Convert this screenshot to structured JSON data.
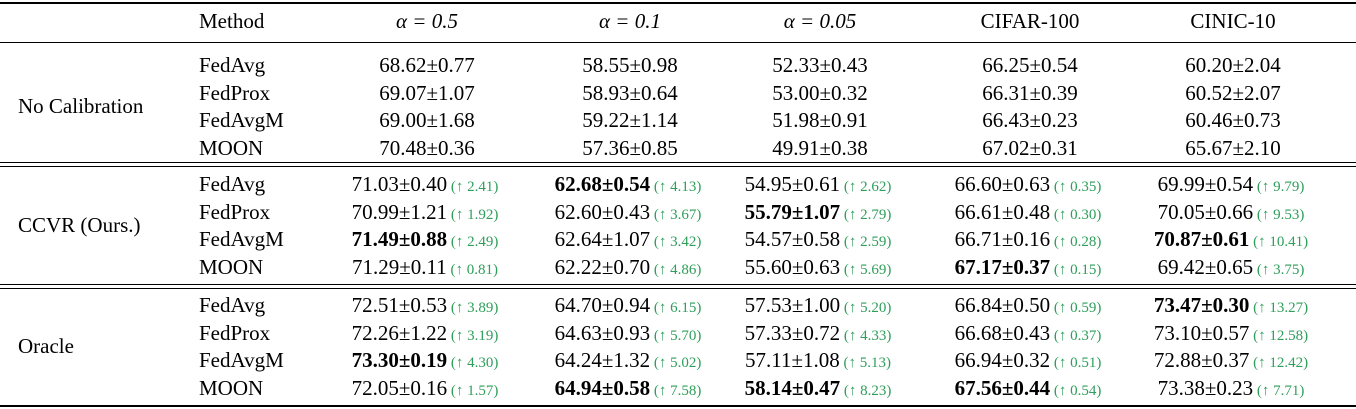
{
  "table": {
    "headers": [
      "Method",
      "α = 0.5",
      "α = 0.1",
      "α = 0.05",
      "CIFAR-100",
      "CINIC-10"
    ],
    "groups": [
      {
        "label": "No Calibration",
        "rows": [
          {
            "method": "FedAvg",
            "cells": [
              {
                "v": "68.62±0.77"
              },
              {
                "v": "58.55±0.98"
              },
              {
                "v": "52.33±0.43"
              },
              {
                "v": "66.25±0.54"
              },
              {
                "v": "60.20±2.04"
              }
            ]
          },
          {
            "method": "FedProx",
            "cells": [
              {
                "v": "69.07±1.07"
              },
              {
                "v": "58.93±0.64"
              },
              {
                "v": "53.00±0.32"
              },
              {
                "v": "66.31±0.39"
              },
              {
                "v": "60.52±2.07"
              }
            ]
          },
          {
            "method": "FedAvgM",
            "cells": [
              {
                "v": "69.00±1.68"
              },
              {
                "v": "59.22±1.14"
              },
              {
                "v": "51.98±0.91"
              },
              {
                "v": "66.43±0.23"
              },
              {
                "v": "60.46±0.73"
              }
            ]
          },
          {
            "method": "MOON",
            "cells": [
              {
                "v": "70.48±0.36"
              },
              {
                "v": "57.36±0.85"
              },
              {
                "v": "49.91±0.38"
              },
              {
                "v": "67.02±0.31"
              },
              {
                "v": "65.67±2.10"
              }
            ]
          }
        ]
      },
      {
        "label": "CCVR (Ours.)",
        "rows": [
          {
            "method": "FedAvg",
            "cells": [
              {
                "v": "71.03±0.40",
                "g": "(↑ 2.41)"
              },
              {
                "v": "62.68±0.54",
                "g": "(↑ 4.13)",
                "bold": true
              },
              {
                "v": "54.95±0.61",
                "g": "(↑ 2.62)"
              },
              {
                "v": "66.60±0.63",
                "g": "(↑ 0.35)"
              },
              {
                "v": "69.99±0.54",
                "g": "(↑ 9.79)"
              }
            ]
          },
          {
            "method": "FedProx",
            "cells": [
              {
                "v": "70.99±1.21",
                "g": "(↑ 1.92)"
              },
              {
                "v": "62.60±0.43",
                "g": "(↑ 3.67)"
              },
              {
                "v": "55.79±1.07",
                "g": "(↑ 2.79)",
                "bold": true
              },
              {
                "v": "66.61±0.48",
                "g": "(↑ 0.30)"
              },
              {
                "v": "70.05±0.66",
                "g": "(↑ 9.53)"
              }
            ]
          },
          {
            "method": "FedAvgM",
            "cells": [
              {
                "v": "71.49±0.88",
                "g": "(↑ 2.49)",
                "bold": true
              },
              {
                "v": "62.64±1.07",
                "g": "(↑ 3.42)"
              },
              {
                "v": "54.57±0.58",
                "g": "(↑ 2.59)"
              },
              {
                "v": "66.71±0.16",
                "g": "(↑ 0.28)"
              },
              {
                "v": "70.87±0.61",
                "g": "(↑ 10.41)",
                "bold": true
              }
            ]
          },
          {
            "method": "MOON",
            "cells": [
              {
                "v": "71.29±0.11",
                "g": "(↑ 0.81)"
              },
              {
                "v": "62.22±0.70",
                "g": "(↑ 4.86)"
              },
              {
                "v": "55.60±0.63",
                "g": "(↑ 5.69)"
              },
              {
                "v": "67.17±0.37",
                "g": "(↑ 0.15)",
                "bold": true
              },
              {
                "v": "69.42±0.65",
                "g": "(↑ 3.75)"
              }
            ]
          }
        ]
      },
      {
        "label": "Oracle",
        "rows": [
          {
            "method": "FedAvg",
            "cells": [
              {
                "v": "72.51±0.53",
                "g": "(↑ 3.89)"
              },
              {
                "v": "64.70±0.94",
                "g": "(↑ 6.15)"
              },
              {
                "v": "57.53±1.00",
                "g": "(↑ 5.20)"
              },
              {
                "v": "66.84±0.50",
                "g": "(↑ 0.59)"
              },
              {
                "v": "73.47±0.30",
                "g": "(↑ 13.27)",
                "bold": true
              }
            ]
          },
          {
            "method": "FedProx",
            "cells": [
              {
                "v": "72.26±1.22",
                "g": "(↑ 3.19)"
              },
              {
                "v": "64.63±0.93",
                "g": "(↑ 5.70)"
              },
              {
                "v": "57.33±0.72",
                "g": "(↑ 4.33)"
              },
              {
                "v": "66.68±0.43",
                "g": "(↑ 0.37)"
              },
              {
                "v": "73.10±0.57",
                "g": "(↑ 12.58)"
              }
            ]
          },
          {
            "method": "FedAvgM",
            "cells": [
              {
                "v": "73.30±0.19",
                "g": "(↑ 4.30)",
                "bold": true
              },
              {
                "v": "64.24±1.32",
                "g": "(↑ 5.02)"
              },
              {
                "v": "57.11±1.08",
                "g": "(↑ 5.13)"
              },
              {
                "v": "66.94±0.32",
                "g": "(↑ 0.51)"
              },
              {
                "v": "72.88±0.37",
                "g": "(↑ 12.42)"
              }
            ]
          },
          {
            "method": "MOON",
            "cells": [
              {
                "v": "72.05±0.16",
                "g": "(↑ 1.57)"
              },
              {
                "v": "64.94±0.58",
                "g": "(↑ 7.58)",
                "bold": true
              },
              {
                "v": "58.14±0.47",
                "g": "(↑ 8.23)",
                "bold": true
              },
              {
                "v": "67.56±0.44",
                "g": "(↑ 0.54)",
                "bold": true
              },
              {
                "v": "73.38±0.23",
                "g": "(↑ 7.71)"
              }
            ]
          }
        ]
      }
    ],
    "colors": {
      "gain": "#2e9e5a",
      "text": "#000000"
    }
  }
}
